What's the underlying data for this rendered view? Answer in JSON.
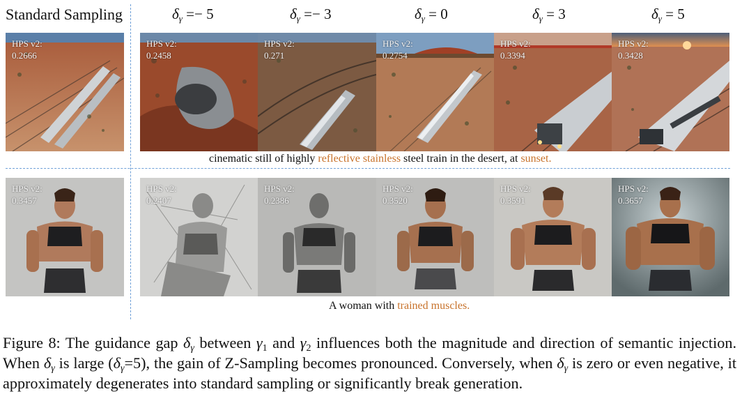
{
  "header": {
    "standard": "Standard Sampling",
    "columns": [
      {
        "sym": "δ",
        "sub": "γ",
        "rest": " =− 5"
      },
      {
        "sym": "δ",
        "sub": "γ",
        "rest": " =− 3"
      },
      {
        "sym": "δ",
        "sub": "γ",
        "rest": " = 0"
      },
      {
        "sym": "δ",
        "sub": "γ",
        "rest": " = 3"
      },
      {
        "sym": "δ",
        "sub": "γ",
        "rest": " = 5"
      }
    ]
  },
  "rows": [
    {
      "hps_label": "HPS v2:",
      "scores": [
        "0.2666",
        "0.2458",
        "0.271",
        "0.2754",
        "0.3394",
        "0.3428"
      ],
      "caption": {
        "pre": "cinematic still of highly ",
        "hl1": "reflective stainless",
        "mid": " steel train in the desert, at ",
        "hl2": "sunset."
      }
    },
    {
      "hps_label": "HPS v2:",
      "scores": [
        "0.3457",
        "0.2407",
        "0.2386",
        "0.3520",
        "0.3591",
        "0.3657"
      ],
      "caption": {
        "pre": "A woman with ",
        "hl1": "trained muscles.",
        "mid": "",
        "hl2": ""
      }
    }
  ],
  "figure_caption": {
    "t1": "Figure 8: The guidance gap ",
    "t2": " between ",
    "t3": " and ",
    "t4": " influences both the magnitude and direction of semantic injection. When ",
    "t5": " is large (",
    "t6": "=5), the gain of Z-Sampling becomes pronounced. Conversely, when ",
    "t7": " is zero or even negative, it approximately degenerates into standard sampling or significantly break generation.",
    "delta": "δ",
    "gamma": "γ",
    "one": "1",
    "two": "2"
  },
  "colors": {
    "highlight": "#c8732c",
    "separator": "#6fa0d8"
  }
}
